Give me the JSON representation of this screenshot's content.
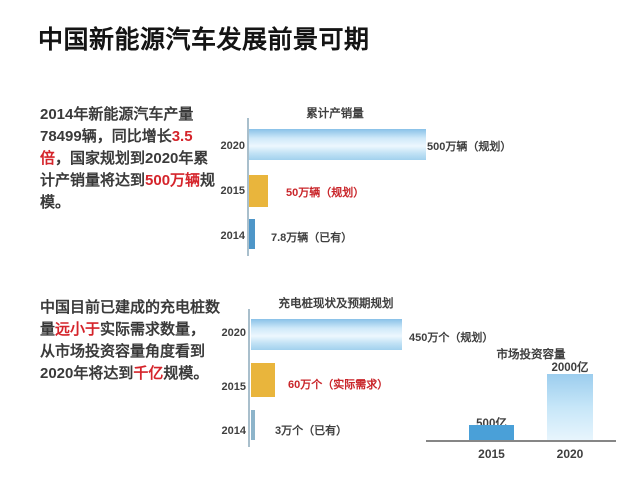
{
  "slide_title": "中国新能源汽车发展前景可期",
  "colors": {
    "accent_red_text": "#d5242b",
    "accent_red_chart": "#c9252a",
    "body_text": "#3a3a3a",
    "bar_yellow": "#e9b53c",
    "bar_blue_solid": "#4e96c8",
    "bar_blue_gradient_top": "#89c1e8",
    "bar_blue_gradient_light": "#edf7fe",
    "column_blue_solid": "#4aa0d8",
    "axis_gray": "#a9bfcc"
  },
  "insight_1": {
    "s1": "2014年新能源汽车产量78499辆，同比增长",
    "s2": "3.5倍",
    "s3": "，国家规划到2020年累计产销量将达到",
    "s4": "500万辆",
    "s5": "规模。"
  },
  "insight_2": {
    "s1": "中国目前已建成的充电桩数量",
    "s2": "远小于",
    "s3": "实际需求数量，从市场投资容量角度看到2020年将达到",
    "s4": "千亿",
    "s5": "规模。"
  },
  "chart_data": [
    {
      "type": "bar",
      "orientation": "horizontal",
      "title": "累计产销量",
      "unit": "万辆",
      "categories": [
        "2020",
        "2015",
        "2014"
      ],
      "values": [
        500,
        50,
        7.8
      ],
      "legend": "none",
      "grid": false,
      "bars": [
        {
          "year": "2020",
          "value": 500,
          "status": "规划",
          "label": "500万辆（规划）"
        },
        {
          "year": "2015",
          "value": 50,
          "status": "规划",
          "label": "50万辆（规划）"
        },
        {
          "year": "2014",
          "value": 7.8,
          "status": "已有",
          "label": "7.8万辆（已有）"
        }
      ]
    },
    {
      "type": "bar",
      "orientation": "horizontal",
      "title": "充电桩现状及预期规划",
      "unit": "万个",
      "categories": [
        "2020",
        "2015",
        "2014"
      ],
      "values": [
        450,
        60,
        3
      ],
      "legend": "none",
      "grid": false,
      "bars": [
        {
          "year": "2020",
          "value": 450,
          "status": "规划",
          "label": "450万个（规划）"
        },
        {
          "year": "2015",
          "value": 60,
          "status": "实际需求",
          "label": "60万个（实际需求）"
        },
        {
          "year": "2014",
          "value": 3,
          "status": "已有",
          "label": "3万个（已有）"
        }
      ]
    },
    {
      "type": "bar",
      "orientation": "vertical",
      "title": "市场投资容量",
      "unit": "亿",
      "categories": [
        "2015",
        "2020"
      ],
      "values": [
        500,
        2000
      ],
      "legend": "none",
      "grid": false,
      "bars": [
        {
          "year": "2015",
          "value": 500,
          "label": "500亿"
        },
        {
          "year": "2020",
          "value": 2000,
          "label": "2000亿"
        }
      ]
    }
  ]
}
